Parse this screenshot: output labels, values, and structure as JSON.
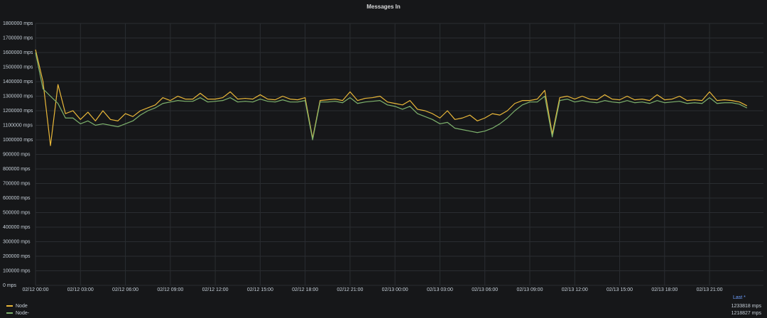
{
  "chart_data": {
    "type": "line",
    "title": "Messages In",
    "x": [
      "02/12 00:00",
      "02/12 00:30",
      "02/12 01:00",
      "02/12 01:30",
      "02/12 02:00",
      "02/12 02:30",
      "02/12 03:00",
      "02/12 03:30",
      "02/12 04:00",
      "02/12 04:30",
      "02/12 05:00",
      "02/12 05:30",
      "02/12 06:00",
      "02/12 06:30",
      "02/12 07:00",
      "02/12 07:30",
      "02/12 08:00",
      "02/12 08:30",
      "02/12 09:00",
      "02/12 09:30",
      "02/12 10:00",
      "02/12 10:30",
      "02/12 11:00",
      "02/12 11:30",
      "02/12 12:00",
      "02/12 12:30",
      "02/12 13:00",
      "02/12 13:30",
      "02/12 14:00",
      "02/12 14:30",
      "02/12 15:00",
      "02/12 15:30",
      "02/12 16:00",
      "02/12 16:30",
      "02/12 17:00",
      "02/12 17:30",
      "02/12 18:00",
      "02/12 18:30",
      "02/12 19:00",
      "02/12 19:30",
      "02/12 20:00",
      "02/12 20:30",
      "02/12 21:00",
      "02/12 21:30",
      "02/12 22:00",
      "02/12 22:30",
      "02/12 23:00",
      "02/12 23:30",
      "02/13 00:00",
      "02/13 00:30",
      "02/13 01:00",
      "02/13 01:30",
      "02/13 02:00",
      "02/13 02:30",
      "02/13 03:00",
      "02/13 03:30",
      "02/13 04:00",
      "02/13 04:30",
      "02/13 05:00",
      "02/13 05:30",
      "02/13 06:00",
      "02/13 06:30",
      "02/13 07:00",
      "02/13 07:30",
      "02/13 08:00",
      "02/13 08:30",
      "02/13 09:00",
      "02/13 09:30",
      "02/13 10:00",
      "02/13 10:30",
      "02/13 11:00",
      "02/13 11:30",
      "02/13 12:00",
      "02/13 12:30",
      "02/13 13:00",
      "02/13 13:30",
      "02/13 14:00",
      "02/13 14:30",
      "02/13 15:00",
      "02/13 15:30",
      "02/13 16:00",
      "02/13 16:30",
      "02/13 17:00",
      "02/13 17:30",
      "02/13 18:00",
      "02/13 18:30",
      "02/13 19:00",
      "02/13 19:30",
      "02/13 20:00",
      "02/13 20:30",
      "02/13 21:00",
      "02/13 21:30",
      "02/13 22:00",
      "02/13 22:30",
      "02/13 23:00",
      "02/13 23:30"
    ],
    "series": [
      {
        "name": "Node",
        "color": "#eab839",
        "last": {
          "value": 1233818,
          "label": "1233818 mps"
        },
        "values": [
          1620000,
          1400000,
          960000,
          1380000,
          1180000,
          1200000,
          1140000,
          1190000,
          1130000,
          1200000,
          1140000,
          1130000,
          1180000,
          1160000,
          1200000,
          1220000,
          1240000,
          1290000,
          1270000,
          1300000,
          1280000,
          1280000,
          1320000,
          1280000,
          1280000,
          1290000,
          1330000,
          1280000,
          1285000,
          1280000,
          1310000,
          1280000,
          1275000,
          1300000,
          1280000,
          1275000,
          1290000,
          1010000,
          1270000,
          1275000,
          1280000,
          1270000,
          1330000,
          1270000,
          1285000,
          1290000,
          1300000,
          1260000,
          1250000,
          1240000,
          1270000,
          1210000,
          1200000,
          1180000,
          1150000,
          1200000,
          1140000,
          1150000,
          1170000,
          1130000,
          1150000,
          1180000,
          1170000,
          1200000,
          1250000,
          1270000,
          1270000,
          1280000,
          1340000,
          1040000,
          1290000,
          1300000,
          1280000,
          1300000,
          1280000,
          1275000,
          1310000,
          1280000,
          1275000,
          1300000,
          1275000,
          1280000,
          1270000,
          1310000,
          1275000,
          1280000,
          1300000,
          1270000,
          1275000,
          1270000,
          1330000,
          1270000,
          1275000,
          1270000,
          1260000,
          1233818
        ]
      },
      {
        "name": "Node-",
        "color": "#7eb26d",
        "last": {
          "value": 1218827,
          "label": "1218827 mps"
        },
        "values": [
          1600000,
          1350000,
          1300000,
          1250000,
          1150000,
          1150000,
          1110000,
          1130000,
          1100000,
          1110000,
          1100000,
          1090000,
          1110000,
          1130000,
          1170000,
          1200000,
          1220000,
          1250000,
          1260000,
          1270000,
          1265000,
          1265000,
          1290000,
          1260000,
          1265000,
          1270000,
          1290000,
          1260000,
          1265000,
          1260000,
          1280000,
          1265000,
          1260000,
          1275000,
          1260000,
          1260000,
          1270000,
          1000000,
          1260000,
          1260000,
          1265000,
          1255000,
          1290000,
          1250000,
          1260000,
          1265000,
          1270000,
          1240000,
          1230000,
          1210000,
          1230000,
          1180000,
          1160000,
          1140000,
          1110000,
          1120000,
          1080000,
          1070000,
          1060000,
          1050000,
          1060000,
          1080000,
          1110000,
          1150000,
          1200000,
          1240000,
          1260000,
          1260000,
          1300000,
          1020000,
          1270000,
          1280000,
          1260000,
          1270000,
          1260000,
          1255000,
          1270000,
          1260000,
          1255000,
          1270000,
          1255000,
          1260000,
          1250000,
          1270000,
          1255000,
          1260000,
          1265000,
          1250000,
          1255000,
          1250000,
          1290000,
          1250000,
          1255000,
          1255000,
          1245000,
          1218827
        ]
      }
    ],
    "legend_header": "Last *",
    "xlim": [
      "02/12 00:00",
      "02/13 23:59"
    ],
    "xticks": [
      "02/12 00:00",
      "02/12 03:00",
      "02/12 06:00",
      "02/12 09:00",
      "02/12 12:00",
      "02/12 15:00",
      "02/12 18:00",
      "02/12 21:00",
      "02/13 00:00",
      "02/13 03:00",
      "02/13 06:00",
      "02/13 09:00",
      "02/13 12:00",
      "02/13 15:00",
      "02/13 18:00",
      "02/13 21:00"
    ],
    "ylim": [
      0,
      1800000
    ],
    "yticks": [
      {
        "value": 0,
        "label": "0 mps"
      },
      {
        "value": 100000,
        "label": "100000 mps"
      },
      {
        "value": 200000,
        "label": "200000 mps"
      },
      {
        "value": 300000,
        "label": "300000 mps"
      },
      {
        "value": 400000,
        "label": "400000 mps"
      },
      {
        "value": 500000,
        "label": "500000 mps"
      },
      {
        "value": 600000,
        "label": "600000 mps"
      },
      {
        "value": 700000,
        "label": "700000 mps"
      },
      {
        "value": 800000,
        "label": "800000 mps"
      },
      {
        "value": 900000,
        "label": "900000 mps"
      },
      {
        "value": 1000000,
        "label": "1000000 mps"
      },
      {
        "value": 1100000,
        "label": "1100000 mps"
      },
      {
        "value": 1200000,
        "label": "1200000 mps"
      },
      {
        "value": 1300000,
        "label": "1300000 mps"
      },
      {
        "value": 1400000,
        "label": "1400000 mps"
      },
      {
        "value": 1500000,
        "label": "1500000 mps"
      },
      {
        "value": 1600000,
        "label": "1600000 mps"
      },
      {
        "value": 1700000,
        "label": "1700000 mps"
      },
      {
        "value": 1800000,
        "label": "1800000 mps"
      }
    ],
    "grid": true
  }
}
